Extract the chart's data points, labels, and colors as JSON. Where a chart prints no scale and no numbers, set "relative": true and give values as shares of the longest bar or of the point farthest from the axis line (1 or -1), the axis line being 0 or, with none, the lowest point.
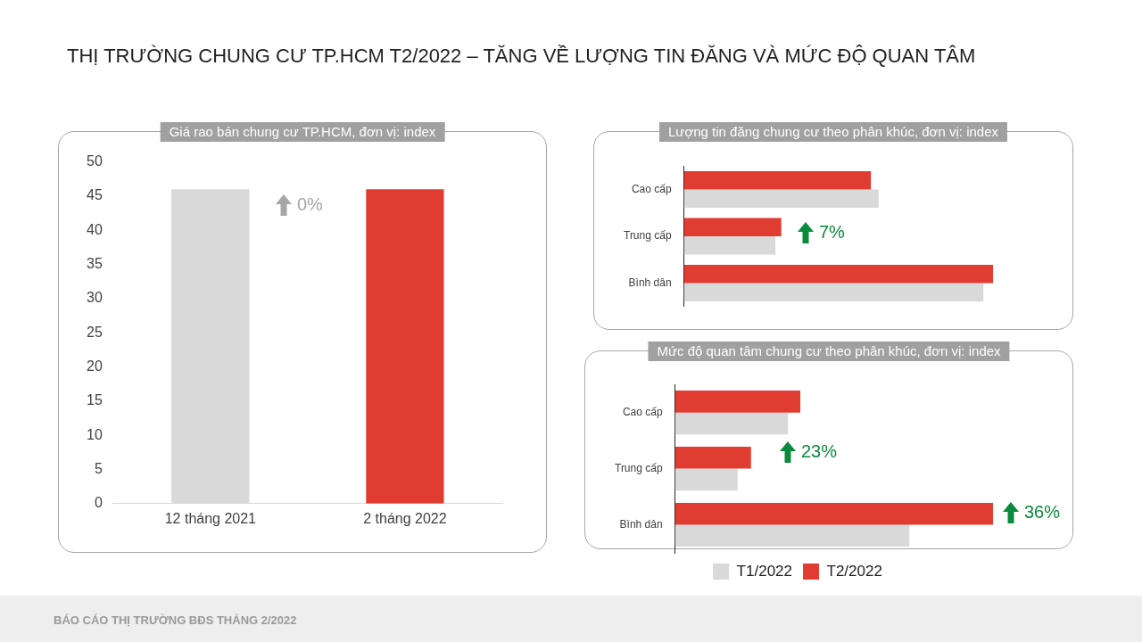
{
  "chart_data": [
    {
      "type": "bar",
      "title": "THỊ TRƯỜNG CHUNG CƯ TP.HCM T2/2022 – TĂNG VỀ LƯỢNG TIN ĐĂNG VÀ MỨC ĐỘ QUAN TÂM",
      "subtitle": "Giá rao bán chung cư TP.HCM, đơn vị: index",
      "categories": [
        "12 tháng 2021",
        "2 tháng 2022"
      ],
      "values": [
        46,
        46
      ],
      "colors": [
        "#d9d9d9",
        "#e03c31"
      ],
      "ylim": [
        0,
        50
      ],
      "yticks": [
        0,
        5,
        10,
        15,
        20,
        25,
        30,
        35,
        40,
        45,
        50
      ],
      "grid": false,
      "legend": false,
      "annotations": [
        "0%",
        "BÁO CÁO THỊ TRƯỜNG BĐS THÁNG 2/2022"
      ]
    },
    {
      "type": "bar",
      "orientation": "horizontal",
      "relative": true,
      "title": "Lượng tin đăng chung cư theo phân khúc, đơn vị: index",
      "categories": [
        "Cao cấp",
        "Trung cấp",
        "Bình dân"
      ],
      "legend": false,
      "series": [
        {
          "color": "#d9d9d9",
          "values": [
            0.63,
            0.296,
            0.969
          ]
        },
        {
          "color": "#e03c31",
          "values": [
            0.605,
            0.315,
            1
          ]
        }
      ],
      "annotations": [
        "7%"
      ]
    },
    {
      "type": "bar",
      "orientation": "horizontal",
      "relative": true,
      "title": "Mức độ quan tâm chung cư theo phân khúc, đơn vị: index",
      "categories": [
        "Cao cấp",
        "Trung cấp",
        "Bình dân"
      ],
      "legend": "bottom",
      "series": [
        {
          "name": "T1/2022",
          "color": "#d9d9d9",
          "values": [
            0.355,
            0.197,
            0.737
          ]
        },
        {
          "name": "T2/2022",
          "color": "#e03c31",
          "values": [
            0.394,
            0.239,
            1
          ]
        }
      ],
      "annotations": [
        "23%",
        "36%"
      ]
    }
  ]
}
